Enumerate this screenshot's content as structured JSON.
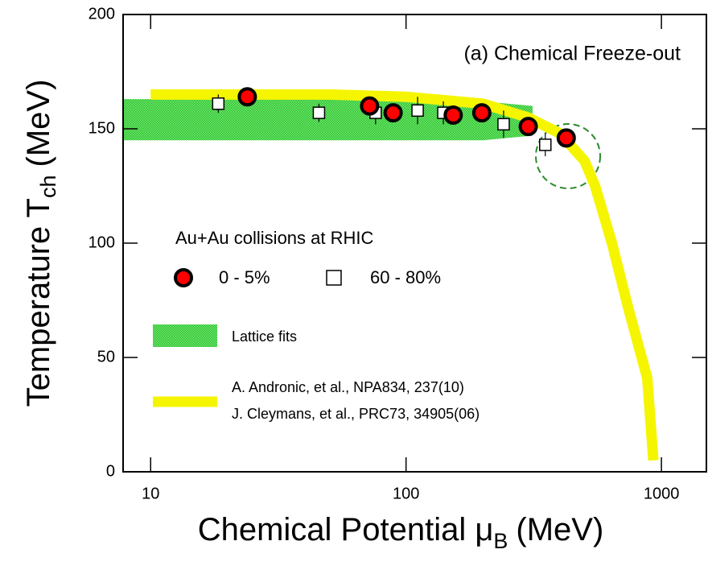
{
  "chart_data": {
    "type": "scatter",
    "title": "(a) Chemical Freeze-out",
    "xlabel": {
      "main": "Chemical Potential μ",
      "sub": "B",
      "unit": "(MeV)"
    },
    "ylabel": {
      "main": "Temperature T",
      "sub": "ch",
      "unit": "(MeV)"
    },
    "xscale": "log",
    "xlim": [
      7.8,
      1500
    ],
    "xticks": [
      10,
      100,
      1000
    ],
    "ylim": [
      0,
      200
    ],
    "yticks": [
      0,
      50,
      100,
      150,
      200
    ],
    "legend_title": "Au+Au collisions at RHIC",
    "series": [
      {
        "name": "0 - 5%",
        "marker": "circle",
        "color": "#ff0000",
        "x": [
          23.9,
          72,
          89,
          153,
          198,
          301,
          424
        ],
        "values": [
          164,
          160,
          157,
          156,
          157,
          151,
          146
        ]
      },
      {
        "name": "60 - 80%",
        "marker": "square",
        "color": "#ffffff",
        "x": [
          18.4,
          45.6,
          76,
          111,
          140,
          241,
          351
        ],
        "values": [
          161,
          157,
          157,
          158,
          157,
          152,
          143
        ],
        "yerr": [
          4,
          4,
          5,
          6,
          5,
          6,
          5
        ]
      }
    ],
    "band": {
      "name": "Lattice fits",
      "color": "#3fd83f",
      "x": [
        7.8,
        100,
        200,
        313
      ],
      "low": [
        145,
        145,
        145,
        147
      ],
      "high": [
        163,
        163,
        162,
        160
      ]
    },
    "curve": {
      "name": [
        "A. Andronic, et al., NPA834, 237(10)",
        "J. Cleymans, et al., PRC73, 34905(06)"
      ],
      "color": "#f5f500",
      "x": [
        10,
        50,
        100,
        200,
        300,
        400,
        500,
        550,
        640,
        740,
        880,
        930
      ],
      "values": [
        165,
        165,
        164,
        161,
        155,
        148,
        136,
        125,
        100,
        72,
        41,
        5
      ]
    }
  }
}
